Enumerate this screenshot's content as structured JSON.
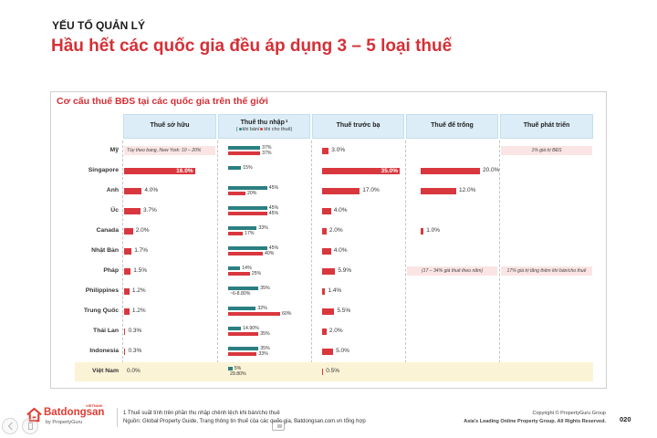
{
  "header": {
    "section": "YẾU TỐ QUẢN LÝ",
    "title": "Hầu hết các quốc gia đều áp dụng 3 – 5 loại thuế"
  },
  "chart_data": {
    "type": "table",
    "title": "Cơ cấu thuế BĐS tại các quốc gia trên thế giới",
    "columns": [
      {
        "key": "so_huu",
        "label": "Thuế sở hữu"
      },
      {
        "key": "thu_nhap",
        "label": "Thuế thu nhập",
        "sup": "1"
      },
      {
        "key": "truoc_ba",
        "label": "Thuế trước bạ"
      },
      {
        "key": "de_trong",
        "label": "Thuế để trống"
      },
      {
        "key": "phat_trien",
        "label": "Thuế phát triển"
      }
    ],
    "legend": [
      {
        "name": "khi bán",
        "color": "#2b7f80"
      },
      {
        "name": "khi cho thuê",
        "color": "#d9373e"
      }
    ],
    "bar_color": "#d9373e",
    "note_bg": "#fbe4e4",
    "highlight_bg": "#fbf3d6",
    "rows": [
      {
        "country": "Mỹ",
        "so_huu": {
          "note": "Tùy theo bang, New York: 10 – 20%"
        },
        "thu_nhap": {
          "sale": {
            "value": 37,
            "label": "37%"
          },
          "rent": {
            "value": 37,
            "label": "37%"
          }
        },
        "truoc_ba": {
          "value": 3.0,
          "label": "3.0%"
        },
        "de_trong": null,
        "phat_trien": {
          "note": "1% giá trị BĐS"
        }
      },
      {
        "country": "Singapore",
        "so_huu": {
          "value": 16.0,
          "label": "16.0%"
        },
        "thu_nhap": {
          "sale": {
            "value": 15,
            "label": "15%"
          },
          "rent": null
        },
        "truoc_ba": {
          "value": 35.0,
          "label": "35.0%"
        },
        "de_trong": {
          "value": 20.0,
          "label": "20.0%"
        },
        "phat_trien": null
      },
      {
        "country": "Anh",
        "so_huu": {
          "value": 4.0,
          "label": "4.0%"
        },
        "thu_nhap": {
          "sale": {
            "value": 45,
            "label": "45%"
          },
          "rent": {
            "value": 20,
            "label": "20%"
          }
        },
        "truoc_ba": {
          "value": 17.0,
          "label": "17.0%"
        },
        "de_trong": {
          "value": 12.0,
          "label": "12.0%"
        },
        "phat_trien": null
      },
      {
        "country": "Úc",
        "so_huu": {
          "value": 3.7,
          "label": "3.7%"
        },
        "thu_nhap": {
          "sale": {
            "value": 45,
            "label": "45%"
          },
          "rent": {
            "value": 45,
            "label": "45%"
          }
        },
        "truoc_ba": {
          "value": 4.0,
          "label": "4.0%"
        },
        "de_trong": null,
        "phat_trien": null
      },
      {
        "country": "Canada",
        "so_huu": {
          "value": 2.0,
          "label": "2.0%"
        },
        "thu_nhap": {
          "sale": {
            "value": 33,
            "label": "33%"
          },
          "rent": {
            "value": 17,
            "label": "17%"
          }
        },
        "truoc_ba": {
          "value": 2.0,
          "label": "2.0%"
        },
        "de_trong": {
          "value": 1.0,
          "label": "1.0%"
        },
        "phat_trien": null
      },
      {
        "country": "Nhật Bản",
        "so_huu": {
          "value": 1.7,
          "label": "1.7%"
        },
        "thu_nhap": {
          "sale": {
            "value": 45,
            "label": "45%"
          },
          "rent": {
            "value": 40,
            "label": "40%"
          }
        },
        "truoc_ba": {
          "value": 4.0,
          "label": "4.0%"
        },
        "de_trong": null,
        "phat_trien": null
      },
      {
        "country": "Pháp",
        "so_huu": {
          "value": 1.5,
          "label": "1.5%"
        },
        "thu_nhap": {
          "sale": {
            "value": 14,
            "label": "14%"
          },
          "rent": {
            "value": 25,
            "label": "25%"
          }
        },
        "truoc_ba": {
          "value": 5.9,
          "label": "5.9%"
        },
        "de_trong": {
          "note": "(17 – 34% giá thuê theo năm)"
        },
        "phat_trien": {
          "note": "17% giá trị tăng thêm khi bán/cho thuê"
        }
      },
      {
        "country": "Philippines",
        "so_huu": {
          "value": 1.2,
          "label": "1.2%"
        },
        "thu_nhap": {
          "sale": {
            "value": 35,
            "label": "35%"
          },
          "rent": {
            "value": null,
            "label": "~6-8.80%"
          }
        },
        "truoc_ba": {
          "value": 1.4,
          "label": "1.4%"
        },
        "de_trong": null,
        "phat_trien": null
      },
      {
        "country": "Trung Quốc",
        "so_huu": {
          "value": 1.2,
          "label": "1.2%"
        },
        "thu_nhap": {
          "sale": {
            "value": 32,
            "label": "32%"
          },
          "rent": {
            "value": 60,
            "label": "60%"
          }
        },
        "truoc_ba": {
          "value": 5.5,
          "label": "5.5%"
        },
        "de_trong": null,
        "phat_trien": null
      },
      {
        "country": "Thái Lan",
        "so_huu": {
          "value": 0.3,
          "label": "0.3%"
        },
        "thu_nhap": {
          "sale": {
            "value": 14.9,
            "label": "14.90%"
          },
          "rent": {
            "value": 35,
            "label": "35%"
          }
        },
        "truoc_ba": {
          "value": 2.0,
          "label": "2.0%"
        },
        "de_trong": null,
        "phat_trien": null
      },
      {
        "country": "Indonesia",
        "so_huu": {
          "value": 0.3,
          "label": "0.3%"
        },
        "thu_nhap": {
          "sale": {
            "value": 35,
            "label": "35%"
          },
          "rent": {
            "value": 33,
            "label": "33%"
          }
        },
        "truoc_ba": {
          "value": 5.0,
          "label": "5.0%"
        },
        "de_trong": null,
        "phat_trien": null
      },
      {
        "country": "Việt Nam",
        "highlight": true,
        "so_huu": {
          "value": 0.0,
          "label": "0.0%"
        },
        "thu_nhap": {
          "sale": {
            "value": 5,
            "label": "5%"
          },
          "rent": {
            "value": null,
            "label": "29.80%"
          }
        },
        "truoc_ba": {
          "value": 0.5,
          "label": "0.5%"
        },
        "de_trong": null,
        "phat_trien": null
      }
    ]
  },
  "footer": {
    "brand": "Batdongsan",
    "brand_tag": "VIETNAM",
    "brand_sub": "by PropertyGuru",
    "brand_color": "#e03c31",
    "footnote": "1 Thuế suất tính trên phần thu nhập chênh lệch khi bán/cho thuê",
    "source": "Nguồn: Global Property Guide, Trang thông tin thuế của các quốc gia, Batdongsan.com.vn tổng hợp",
    "copyright": "Copyright © PropertyGuru Group",
    "rights": "Asia's Leading Online Property Group. All Rights Reserved.",
    "page": "020"
  },
  "viewer": {
    "icons": [
      "chevron-left-icon",
      "page-icon",
      "picture-in-picture-icon"
    ]
  }
}
